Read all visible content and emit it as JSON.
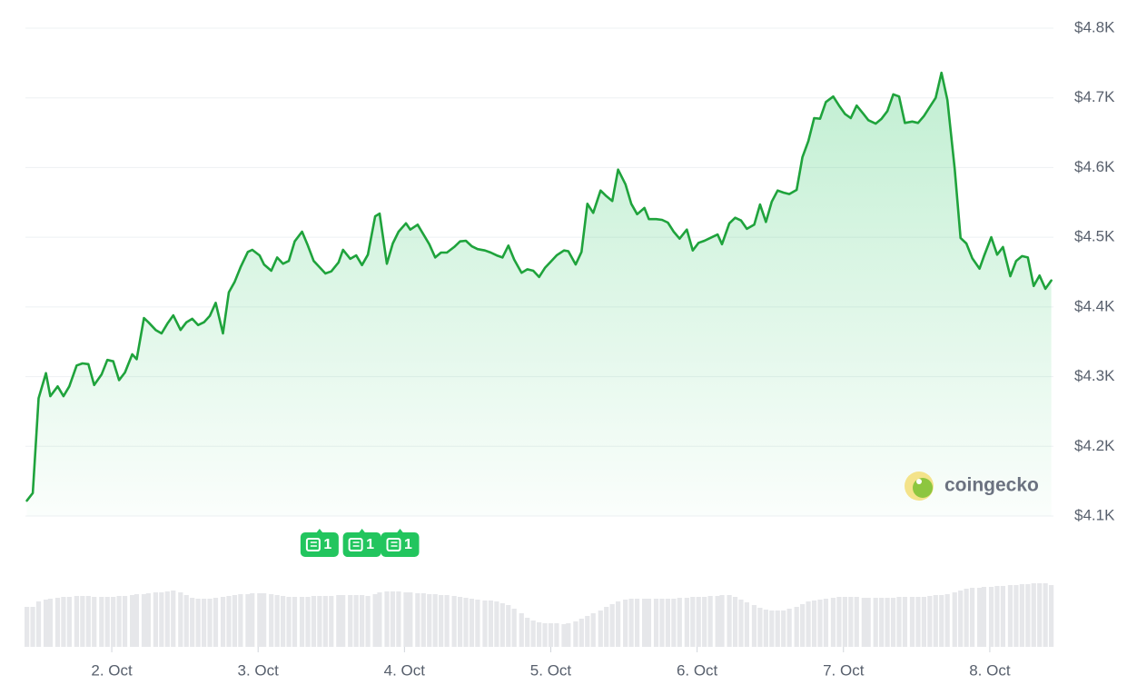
{
  "chart_data": {
    "type": "line",
    "xlim": [
      1.41,
      8.435
    ],
    "xticks": [
      {
        "value": 2,
        "label": "2. Oct"
      },
      {
        "value": 3,
        "label": "3. Oct"
      },
      {
        "value": 4,
        "label": "4. Oct"
      },
      {
        "value": 5,
        "label": "5. Oct"
      },
      {
        "value": 6,
        "label": "6. Oct"
      },
      {
        "value": 7,
        "label": "7. Oct"
      },
      {
        "value": 8,
        "label": "8. Oct"
      }
    ],
    "ylim": [
      4100,
      4800
    ],
    "yticks": [
      {
        "value": 4100,
        "label": "$4.1K"
      },
      {
        "value": 4200,
        "label": "$4.2K"
      },
      {
        "value": 4300,
        "label": "$4.3K"
      },
      {
        "value": 4400,
        "label": "$4.4K"
      },
      {
        "value": 4500,
        "label": "$4.5K"
      },
      {
        "value": 4600,
        "label": "$4.6K"
      },
      {
        "value": 4700,
        "label": "$4.7K"
      },
      {
        "value": 4800,
        "label": "$4.8K"
      }
    ],
    "grid": true,
    "series": [
      {
        "color": "#1fa33c",
        "x": [
          1.42,
          1.46,
          1.5,
          1.55,
          1.58,
          1.63,
          1.67,
          1.71,
          1.76,
          1.8,
          1.84,
          1.88,
          1.93,
          1.97,
          2.01,
          2.05,
          2.09,
          2.14,
          2.17,
          2.22,
          2.25,
          2.3,
          2.34,
          2.38,
          2.42,
          2.47,
          2.51,
          2.55,
          2.59,
          2.63,
          2.67,
          2.71,
          2.76,
          2.8,
          2.84,
          2.88,
          2.93,
          2.96,
          3.01,
          3.04,
          3.09,
          3.13,
          3.17,
          3.21,
          3.25,
          3.3,
          3.34,
          3.38,
          3.42,
          3.46,
          3.5,
          3.55,
          3.58,
          3.63,
          3.67,
          3.71,
          3.75,
          3.8,
          3.83,
          3.88,
          3.92,
          3.96,
          4.01,
          4.04,
          4.09,
          4.13,
          4.17,
          4.21,
          4.25,
          4.29,
          4.34,
          4.38,
          4.42,
          4.46,
          4.5,
          4.55,
          4.59,
          4.63,
          4.67,
          4.71,
          4.75,
          4.8,
          4.84,
          4.88,
          4.92,
          4.96,
          5.0,
          5.04,
          5.09,
          5.12,
          5.17,
          5.21,
          5.25,
          5.29,
          5.34,
          5.38,
          5.42,
          5.46,
          5.51,
          5.55,
          5.59,
          5.64,
          5.67,
          5.72,
          5.76,
          5.8,
          5.84,
          5.88,
          5.93,
          5.97,
          6.01,
          6.05,
          6.09,
          6.14,
          6.17,
          6.22,
          6.26,
          6.3,
          6.34,
          6.39,
          6.43,
          6.47,
          6.51,
          6.55,
          6.59,
          6.63,
          6.68,
          6.72,
          6.76,
          6.8,
          6.84,
          6.88,
          6.93,
          6.97,
          7.01,
          7.05,
          7.09,
          7.14,
          7.17,
          7.22,
          7.26,
          7.3,
          7.34,
          7.38,
          7.42,
          7.47,
          7.51,
          7.55,
          7.59,
          7.63,
          7.67,
          7.71,
          7.76,
          7.8,
          7.84,
          7.88,
          7.93,
          7.96,
          8.01,
          8.05,
          8.09,
          8.14,
          8.18,
          8.22,
          8.26,
          8.3,
          8.34,
          8.38,
          8.42
        ],
        "values": [
          4122,
          4133,
          4269,
          4305,
          4272,
          4286,
          4272,
          4286,
          4316,
          4319,
          4318,
          4288,
          4303,
          4324,
          4322,
          4295,
          4306,
          4332,
          4325,
          4384,
          4378,
          4367,
          4362,
          4376,
          4388,
          4367,
          4378,
          4383,
          4374,
          4378,
          4387,
          4406,
          4362,
          4421,
          4436,
          4457,
          4479,
          4482,
          4474,
          4461,
          4452,
          4471,
          4462,
          4466,
          4494,
          4508,
          4488,
          4466,
          4457,
          4448,
          4451,
          4464,
          4482,
          4469,
          4474,
          4460,
          4475,
          4530,
          4534,
          4462,
          4491,
          4508,
          4520,
          4511,
          4518,
          4504,
          4490,
          4471,
          4478,
          4478,
          4486,
          4494,
          4495,
          4487,
          4483,
          4481,
          4478,
          4474,
          4471,
          4488,
          4468,
          4449,
          4454,
          4452,
          4443,
          4456,
          4465,
          4474,
          4481,
          4480,
          4461,
          4479,
          4548,
          4535,
          4567,
          4559,
          4552,
          4597,
          4576,
          4548,
          4533,
          4542,
          4526,
          4526,
          4525,
          4521,
          4508,
          4498,
          4511,
          4481,
          4492,
          4495,
          4499,
          4504,
          4490,
          4520,
          4528,
          4524,
          4512,
          4518,
          4547,
          4522,
          4551,
          4567,
          4564,
          4562,
          4568,
          4615,
          4638,
          4671,
          4670,
          4694,
          4702,
          4689,
          4677,
          4671,
          4689,
          4676,
          4668,
          4663,
          4670,
          4681,
          4705,
          4702,
          4664,
          4666,
          4664,
          4674,
          4687,
          4700,
          4736,
          4697,
          4599,
          4499,
          4491,
          4470,
          4455,
          4473,
          4500,
          4475,
          4486,
          4444,
          4466,
          4473,
          4471,
          4430,
          4445,
          4426,
          4438
        ]
      }
    ],
    "volume": {
      "color": "#e6e7ea",
      "values": [
        44,
        44,
        50,
        52,
        53,
        54,
        55,
        55,
        56,
        56,
        56,
        55,
        55,
        55,
        55,
        56,
        56,
        57,
        58,
        58,
        59,
        60,
        60,
        61,
        62,
        60,
        57,
        54,
        53,
        53,
        53,
        54,
        55,
        56,
        57,
        58,
        58,
        59,
        59,
        59,
        58,
        57,
        56,
        55,
        55,
        55,
        55,
        56,
        56,
        56,
        56,
        57,
        57,
        57,
        57,
        57,
        56,
        58,
        60,
        61,
        61,
        61,
        60,
        60,
        59,
        59,
        58,
        58,
        57,
        57,
        56,
        55,
        54,
        53,
        52,
        51,
        51,
        50,
        48,
        46,
        42,
        37,
        32,
        29,
        27,
        26,
        26,
        26,
        25,
        26,
        28,
        31,
        34,
        37,
        40,
        44,
        47,
        50,
        52,
        53,
        53,
        53,
        53,
        53,
        53,
        53,
        53,
        54,
        54,
        55,
        55,
        55,
        56,
        56,
        57,
        57,
        55,
        52,
        49,
        46,
        43,
        41,
        40,
        40,
        40,
        42,
        44,
        47,
        50,
        51,
        52,
        53,
        54,
        55,
        55,
        55,
        55,
        54,
        54,
        54,
        54,
        54,
        54,
        55,
        55,
        55,
        55,
        55,
        56,
        57,
        57,
        58,
        60,
        62,
        64,
        65,
        65,
        66,
        66,
        67,
        67,
        68,
        68,
        69,
        69,
        70,
        70,
        70,
        68
      ]
    },
    "annotations": [
      {
        "x": 3.42,
        "label": "1"
      },
      {
        "x": 3.71,
        "label": "1"
      },
      {
        "x": 3.97,
        "label": "1"
      }
    ],
    "watermark": "coingecko"
  }
}
